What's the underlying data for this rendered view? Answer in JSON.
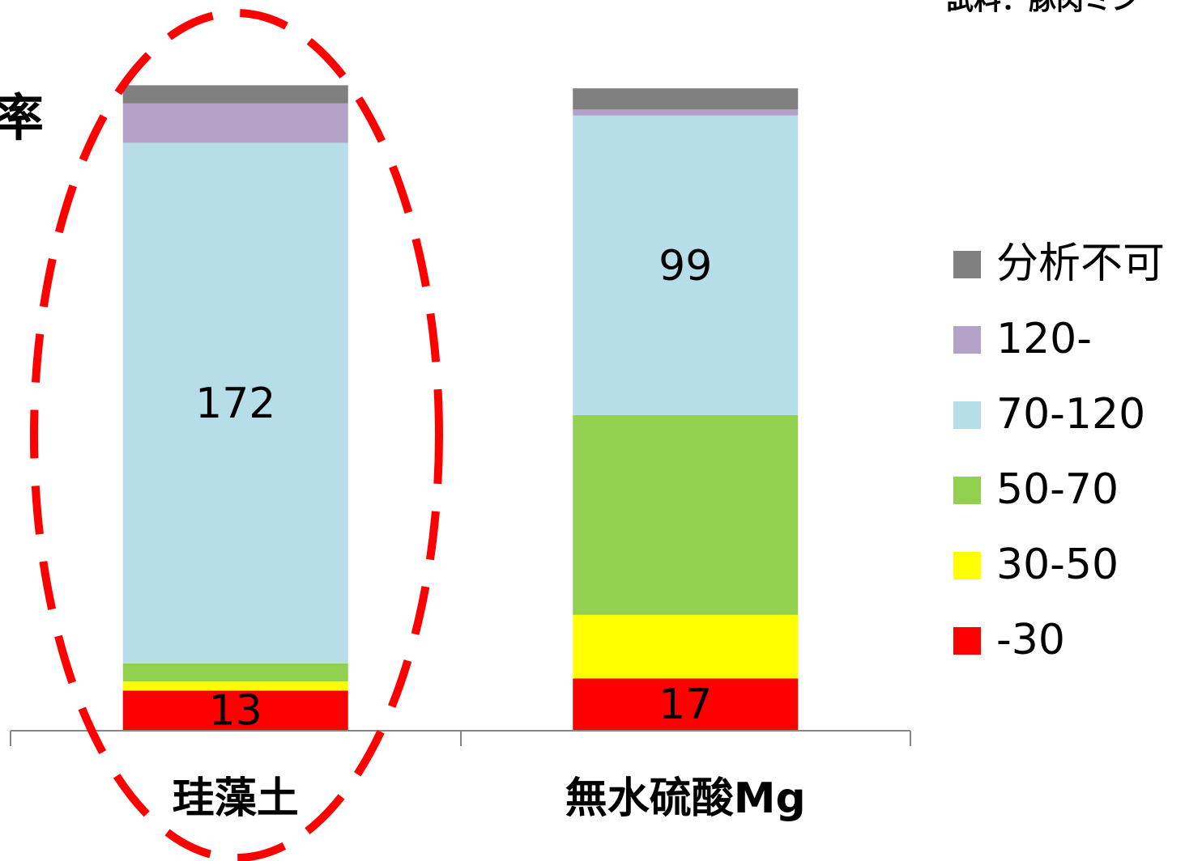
{
  "chart_data": {
    "type": "stacked_bar",
    "title": "率",
    "annotation": "試料：豚肉ミン",
    "categories": [
      "珪藻土",
      "無水硫酸Mg"
    ],
    "series": [
      {
        "name": "-30",
        "color": "#ff0000",
        "values": [
          13,
          17
        ],
        "value_labels": [
          "13",
          "17"
        ]
      },
      {
        "name": "30-50",
        "color": "#ffff00",
        "values": [
          3,
          21
        ],
        "value_labels": [
          null,
          null
        ]
      },
      {
        "name": "50-70",
        "color": "#92d050",
        "values": [
          6,
          66
        ],
        "value_labels": [
          null,
          null
        ]
      },
      {
        "name": "70-120",
        "color": "#b7dde8",
        "values": [
          172,
          99
        ],
        "value_labels": [
          "172",
          "99"
        ]
      },
      {
        "name": "120-",
        "color": "#b2a2c7",
        "values": [
          13,
          2
        ],
        "value_labels": [
          null,
          null
        ]
      },
      {
        "name": "分析不可",
        "color": "#808080",
        "values": [
          6,
          7
        ],
        "value_labels": [
          null,
          null
        ]
      }
    ]
  }
}
